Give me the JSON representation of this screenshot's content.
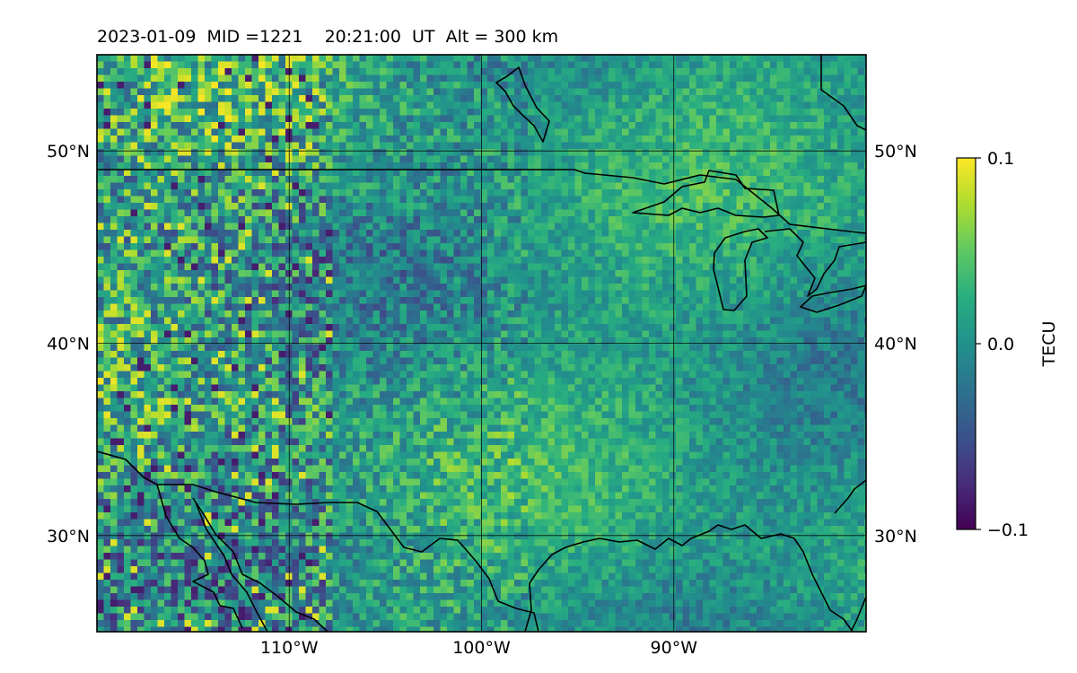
{
  "title": "2023-01-09  MID =1221    20:21:00  UT  Alt = 300 km",
  "map": {
    "lon_range": [
      -120,
      -80
    ],
    "lat_range": [
      25,
      55
    ],
    "lon_ticks": [
      {
        "value": -110,
        "label": "110°W"
      },
      {
        "value": -100,
        "label": "100°W"
      },
      {
        "value": -90,
        "label": "90°W"
      }
    ],
    "lat_ticks": [
      {
        "value": 30,
        "label": "30°N"
      },
      {
        "value": 40,
        "label": "40°N"
      },
      {
        "value": 50,
        "label": "50°N"
      }
    ],
    "grid": true,
    "field": "differential TEC (TECU)",
    "colormap": "viridis",
    "coastlines": "black"
  },
  "colorbar": {
    "label": "TECU",
    "min": -0.1,
    "max": 0.1,
    "ticks": [
      {
        "value": 0.1,
        "label": "0.1"
      },
      {
        "value": 0.0,
        "label": "0.0"
      },
      {
        "value": -0.1,
        "label": "−0.1"
      }
    ],
    "colormap": "viridis"
  }
}
